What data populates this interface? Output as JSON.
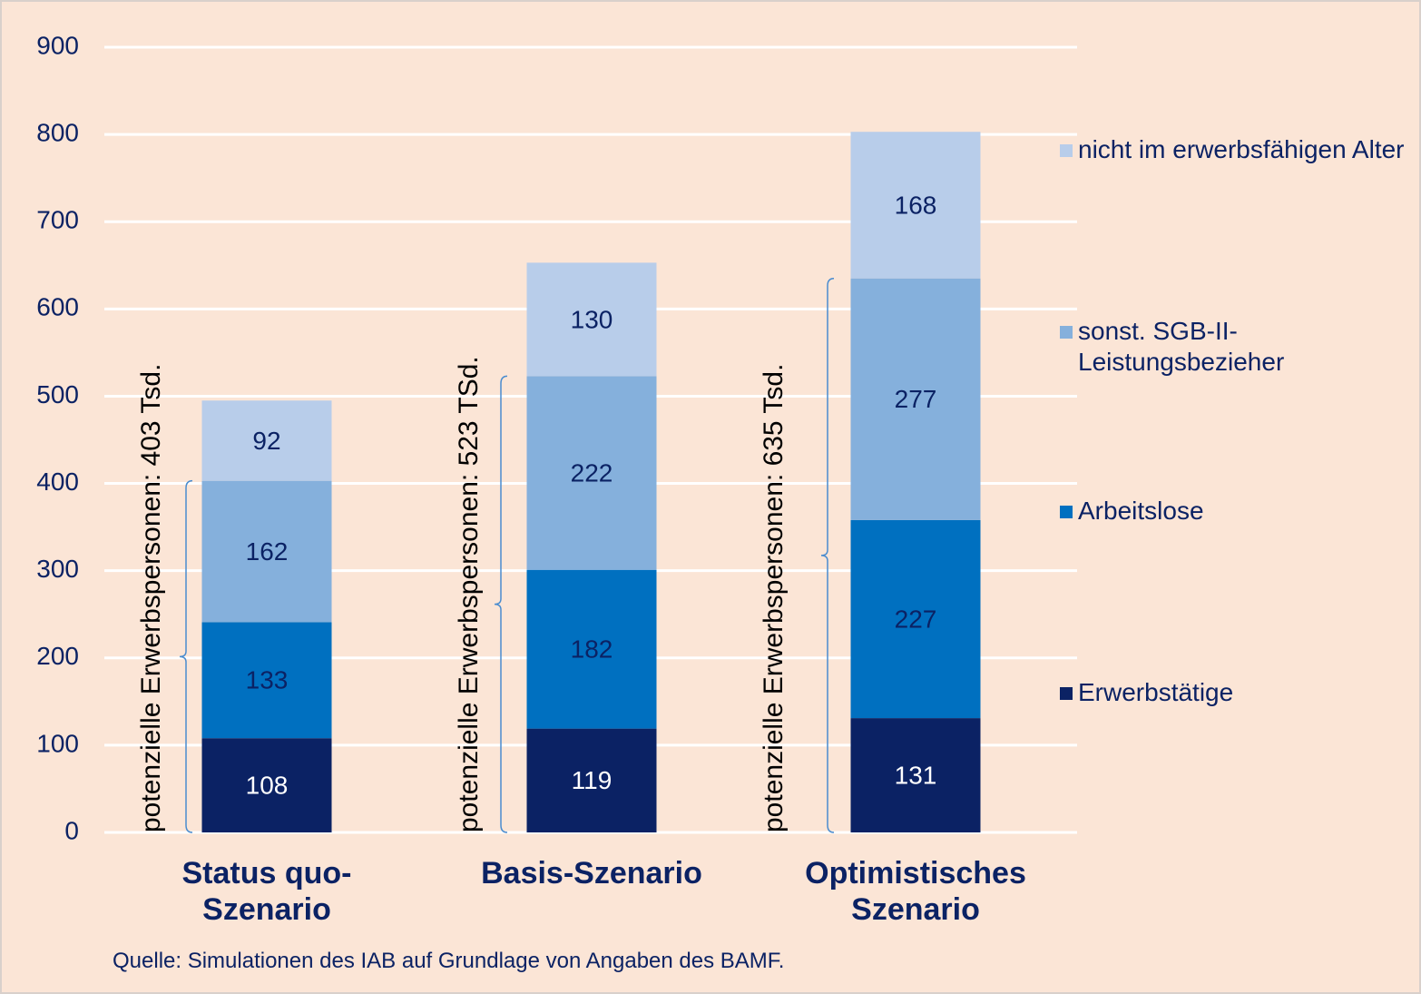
{
  "chart_data": {
    "type": "stacked_bar",
    "categories": [
      "Status quo-Szenario",
      "Basis-Szenario",
      "Optimistisches Szenario"
    ],
    "series": [
      {
        "name": "Erwerbstätige",
        "color": "#0b2264",
        "label_color": "#ffffff",
        "values": [
          108,
          119,
          131
        ]
      },
      {
        "name": "Arbeitslose",
        "color": "#0070c0",
        "label_color": "#0b2264",
        "values": [
          133,
          182,
          227
        ]
      },
      {
        "name": "sonst. SGB-II-Leistungsbezieher",
        "color": "#85b0dc",
        "label_color": "#0b2264",
        "values": [
          162,
          222,
          277
        ]
      },
      {
        "name": "nicht im erwerbsfähigen Alter",
        "color": "#b8cdea",
        "label_color": "#0b2264",
        "values": [
          92,
          130,
          168
        ]
      }
    ],
    "ylim": [
      0,
      900
    ],
    "yticks": [
      0,
      100,
      200,
      300,
      400,
      500,
      600,
      700,
      800,
      900
    ],
    "grid": true,
    "legend": "right",
    "annotations": [
      {
        "text": "potenzielle Erwerbspersonen: 403 Tsd.",
        "value": 403
      },
      {
        "text": "potenzielle Erwerbspersonen: 523 TSd.",
        "value": 523
      },
      {
        "text": "potenzielle Erwerbspersonen: 635 Tsd.",
        "value": 635
      }
    ],
    "source": "Quelle: Simulationen des IAB auf Grundlage von Angaben des BAMF."
  }
}
